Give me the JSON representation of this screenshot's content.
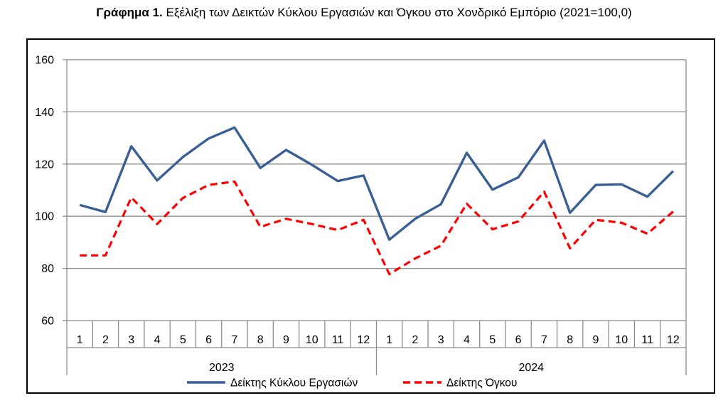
{
  "title": {
    "prefix": "Γράφημα 1.",
    "text": "Εξέλιξη των Δεικτών Κύκλου Εργασιών και Όγκου στο Χονδρικό Εμπόριο (2021=100,0)"
  },
  "chart_data": {
    "type": "line",
    "categories": [
      "1",
      "2",
      "3",
      "4",
      "5",
      "6",
      "7",
      "8",
      "9",
      "10",
      "11",
      "12",
      "1",
      "2",
      "3",
      "4",
      "5",
      "6",
      "7",
      "8",
      "9",
      "10",
      "11",
      "12"
    ],
    "groups": [
      {
        "label": "2023",
        "start": 0,
        "end": 11
      },
      {
        "label": "2024",
        "start": 12,
        "end": 23
      }
    ],
    "ylim": [
      60,
      160
    ],
    "yticks": [
      60,
      80,
      100,
      120,
      140,
      160
    ],
    "grid": true,
    "legend_position": "bottom",
    "series": [
      {
        "name": "Δείκτης Κύκλου Εργασιών",
        "color": "#3a5f95",
        "style": "solid",
        "values": [
          104.3,
          101.6,
          126.8,
          113.7,
          122.7,
          129.8,
          134.0,
          118.5,
          125.4,
          119.7,
          113.5,
          115.6,
          91.0,
          99.0,
          104.6,
          124.3,
          110.2,
          114.9,
          129.0,
          101.3,
          112.0,
          112.2,
          107.5,
          117.3
        ]
      },
      {
        "name": "Δείκτης Όγκου",
        "color": "#ff0000",
        "style": "dashed",
        "values": [
          85.0,
          85.0,
          107.2,
          97.0,
          107.0,
          112.0,
          113.3,
          95.9,
          99.0,
          97.0,
          94.7,
          98.6,
          77.8,
          83.8,
          88.7,
          104.8,
          95.0,
          98.0,
          109.4,
          87.7,
          98.6,
          97.5,
          93.3,
          101.8
        ]
      }
    ]
  }
}
